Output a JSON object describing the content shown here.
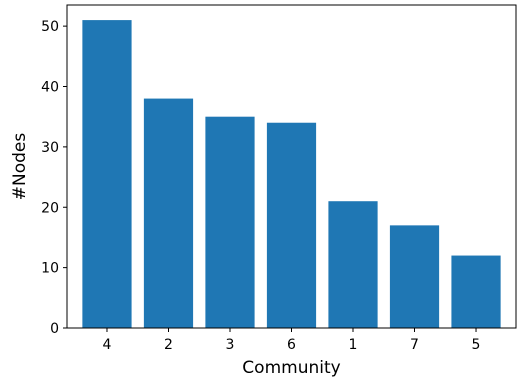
{
  "chart_data": {
    "type": "bar",
    "categories": [
      "4",
      "2",
      "3",
      "6",
      "1",
      "7",
      "5"
    ],
    "values": [
      51,
      38,
      35,
      34,
      21,
      17,
      12
    ],
    "title": "",
    "xlabel": "Community",
    "ylabel": "#Nodes",
    "ylim": [
      0,
      53.5
    ],
    "yticks": [
      0,
      10,
      20,
      30,
      40,
      50
    ],
    "bar_color": "#1f77b4",
    "grid": false
  }
}
